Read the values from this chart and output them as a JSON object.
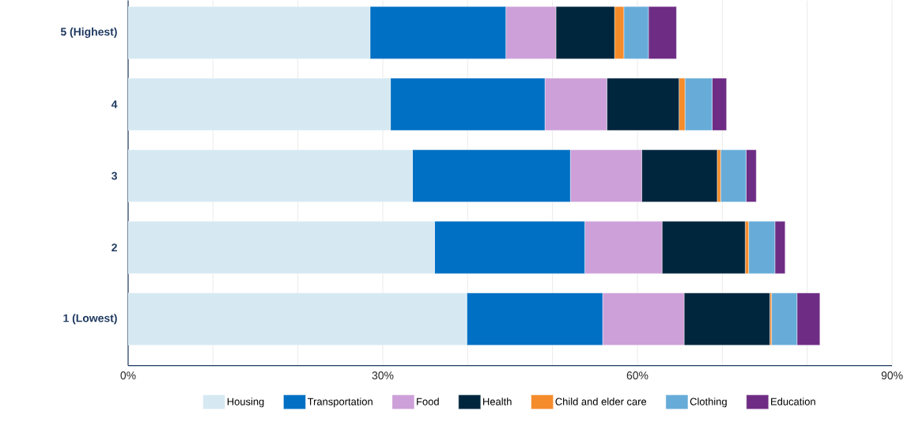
{
  "chart_data": {
    "type": "bar",
    "orientation": "horizontal",
    "stacked": true,
    "categories": [
      "5 (Highest)",
      "4",
      "3",
      "2",
      "1 (Lowest)"
    ],
    "series": [
      {
        "name": "Housing",
        "color": "#d6e9f3",
        "values": [
          28.5,
          30.9,
          33.5,
          36.1,
          39.9
        ]
      },
      {
        "name": "Transportation",
        "color": "#0070c4",
        "values": [
          16.0,
          18.2,
          18.6,
          17.7,
          16.0
        ]
      },
      {
        "name": "Food",
        "color": "#cda0d9",
        "values": [
          5.9,
          7.3,
          8.4,
          9.1,
          9.6
        ]
      },
      {
        "name": "Health",
        "color": "#00263e",
        "values": [
          6.9,
          8.5,
          8.9,
          9.8,
          10.1
        ]
      },
      {
        "name": "Child and elder care",
        "color": "#f58c2b",
        "values": [
          1.1,
          0.7,
          0.4,
          0.4,
          0.2
        ]
      },
      {
        "name": "Clothing",
        "color": "#67acd9",
        "values": [
          2.9,
          3.2,
          3.0,
          3.1,
          3.0
        ]
      },
      {
        "name": "Education",
        "color": "#6e2c84",
        "values": [
          3.3,
          1.7,
          1.2,
          1.2,
          2.7
        ]
      }
    ],
    "xlim": [
      0,
      90
    ],
    "xticks": [
      {
        "value": 0,
        "label": "0%"
      },
      {
        "value": 10,
        "label": null
      },
      {
        "value": 20,
        "label": null
      },
      {
        "value": 30,
        "label": "30%"
      },
      {
        "value": 40,
        "label": null
      },
      {
        "value": 50,
        "label": null
      },
      {
        "value": 60,
        "label": "60%"
      },
      {
        "value": 70,
        "label": null
      },
      {
        "value": 80,
        "label": null
      },
      {
        "value": 90,
        "label": "90%"
      }
    ],
    "grid": "x",
    "legend": "bottom"
  }
}
